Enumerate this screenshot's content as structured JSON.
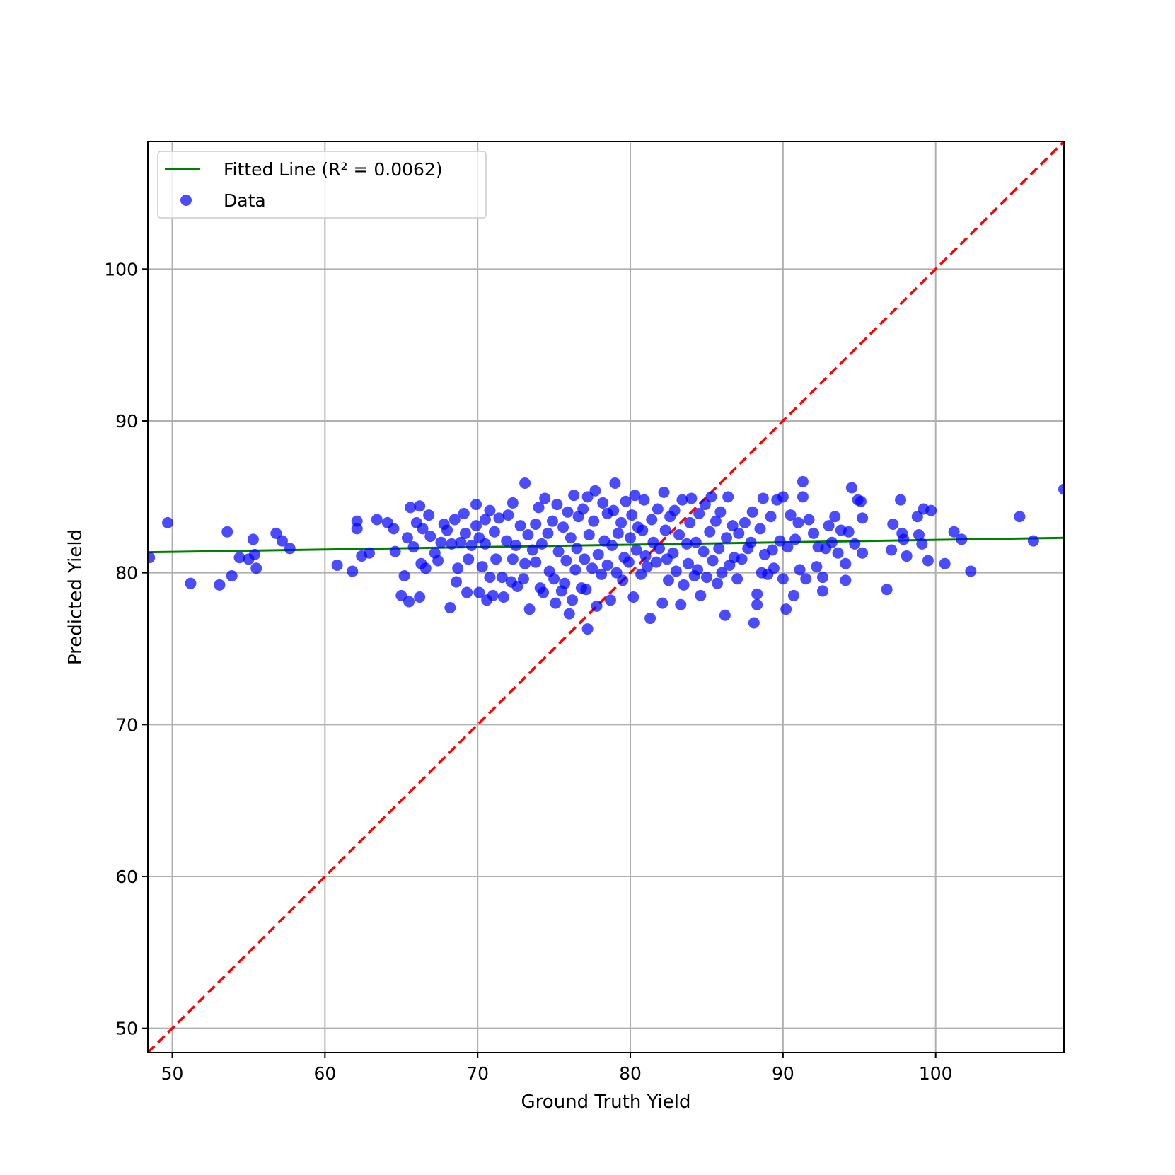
{
  "chart_data": {
    "type": "scatter",
    "title": "",
    "xlabel": "Ground Truth Yield",
    "ylabel": "Predicted Yield",
    "xlim": [
      48.4,
      108.4
    ],
    "ylim": [
      48.4,
      108.4
    ],
    "xticks": [
      50,
      60,
      70,
      80,
      90,
      100
    ],
    "yticks": [
      50,
      60,
      70,
      80,
      90,
      100
    ],
    "grid": true,
    "legend_position": "top-left",
    "legend": {
      "fitted_label": "Fitted Line (R² = 0.0062)",
      "data_label": "Data"
    },
    "colors": {
      "points": "#0000ff",
      "fitted": "#008000",
      "identity": "#ff0000",
      "grid": "#b0b0b0"
    },
    "fitted_line": {
      "x": [
        48.4,
        108.4
      ],
      "y": [
        81.35,
        82.3
      ]
    },
    "identity_line": {
      "x": [
        48.4,
        108.4
      ],
      "y": [
        48.4,
        108.4
      ]
    },
    "series": [
      {
        "name": "Data",
        "points": [
          [
            48.5,
            81.0
          ],
          [
            49.7,
            83.3
          ],
          [
            51.2,
            79.3
          ],
          [
            53.1,
            79.2
          ],
          [
            53.6,
            82.7
          ],
          [
            53.9,
            79.8
          ],
          [
            54.4,
            81.0
          ],
          [
            55.0,
            80.9
          ],
          [
            55.3,
            82.2
          ],
          [
            55.4,
            81.2
          ],
          [
            55.5,
            80.3
          ],
          [
            56.8,
            82.6
          ],
          [
            57.2,
            82.1
          ],
          [
            57.7,
            81.6
          ],
          [
            60.8,
            80.5
          ],
          [
            61.8,
            80.1
          ],
          [
            62.1,
            83.4
          ],
          [
            62.1,
            82.9
          ],
          [
            62.4,
            81.1
          ],
          [
            62.9,
            81.3
          ],
          [
            63.4,
            83.5
          ],
          [
            64.1,
            83.3
          ],
          [
            64.5,
            82.9
          ],
          [
            64.6,
            81.4
          ],
          [
            65.0,
            78.5
          ],
          [
            65.2,
            79.8
          ],
          [
            65.4,
            82.3
          ],
          [
            65.5,
            78.1
          ],
          [
            65.6,
            84.3
          ],
          [
            65.8,
            81.7
          ],
          [
            66.0,
            83.3
          ],
          [
            66.2,
            84.4
          ],
          [
            66.2,
            78.4
          ],
          [
            66.3,
            80.6
          ],
          [
            66.4,
            82.9
          ],
          [
            66.6,
            80.3
          ],
          [
            66.8,
            83.8
          ],
          [
            66.9,
            82.4
          ],
          [
            67.2,
            81.3
          ],
          [
            67.4,
            80.8
          ],
          [
            67.6,
            82.0
          ],
          [
            67.8,
            83.2
          ],
          [
            68.0,
            82.8
          ],
          [
            68.2,
            77.7
          ],
          [
            68.3,
            81.9
          ],
          [
            68.5,
            83.5
          ],
          [
            68.6,
            79.4
          ],
          [
            68.7,
            80.3
          ],
          [
            68.9,
            82.0
          ],
          [
            69.1,
            83.9
          ],
          [
            69.2,
            82.6
          ],
          [
            69.3,
            78.7
          ],
          [
            69.4,
            80.9
          ],
          [
            69.6,
            81.8
          ],
          [
            69.9,
            84.5
          ],
          [
            69.9,
            83.1
          ],
          [
            70.1,
            82.3
          ],
          [
            70.1,
            78.7
          ],
          [
            70.3,
            80.4
          ],
          [
            70.5,
            81.9
          ],
          [
            70.5,
            83.5
          ],
          [
            70.6,
            78.2
          ],
          [
            70.8,
            79.7
          ],
          [
            70.8,
            84.1
          ],
          [
            71.0,
            78.5
          ],
          [
            71.1,
            82.7
          ],
          [
            71.2,
            80.9
          ],
          [
            71.4,
            83.6
          ],
          [
            71.6,
            79.7
          ],
          [
            71.7,
            78.4
          ],
          [
            71.9,
            82.1
          ],
          [
            72.0,
            83.8
          ],
          [
            72.2,
            79.4
          ],
          [
            72.3,
            80.9
          ],
          [
            72.3,
            84.6
          ],
          [
            72.5,
            81.8
          ],
          [
            72.6,
            79.1
          ],
          [
            72.8,
            83.1
          ],
          [
            73.0,
            79.6
          ],
          [
            73.1,
            80.6
          ],
          [
            73.1,
            85.9
          ],
          [
            73.3,
            82.5
          ],
          [
            73.4,
            77.6
          ],
          [
            73.6,
            81.5
          ],
          [
            73.8,
            80.7
          ],
          [
            73.8,
            83.2
          ],
          [
            74.0,
            84.3
          ],
          [
            74.1,
            79.0
          ],
          [
            74.2,
            81.9
          ],
          [
            74.3,
            78.7
          ],
          [
            74.4,
            84.9
          ],
          [
            74.6,
            82.6
          ],
          [
            74.7,
            80.1
          ],
          [
            74.9,
            83.4
          ],
          [
            75.0,
            79.6
          ],
          [
            75.1,
            78.0
          ],
          [
            75.2,
            84.5
          ],
          [
            75.3,
            81.4
          ],
          [
            75.5,
            78.8
          ],
          [
            75.6,
            83.0
          ],
          [
            75.7,
            79.3
          ],
          [
            75.8,
            80.8
          ],
          [
            75.9,
            84.0
          ],
          [
            76.0,
            77.3
          ],
          [
            76.1,
            82.3
          ],
          [
            76.2,
            78.2
          ],
          [
            76.3,
            85.1
          ],
          [
            76.4,
            80.2
          ],
          [
            76.5,
            81.6
          ],
          [
            76.6,
            83.7
          ],
          [
            76.8,
            79.0
          ],
          [
            76.9,
            84.2
          ],
          [
            77.0,
            80.9
          ],
          [
            77.1,
            78.9
          ],
          [
            77.2,
            76.3
          ],
          [
            77.2,
            85.0
          ],
          [
            77.3,
            82.5
          ],
          [
            77.5,
            80.3
          ],
          [
            77.6,
            83.4
          ],
          [
            77.7,
            85.4
          ],
          [
            77.8,
            77.8
          ],
          [
            77.9,
            81.2
          ],
          [
            78.1,
            79.9
          ],
          [
            78.2,
            84.6
          ],
          [
            78.3,
            82.1
          ],
          [
            78.5,
            80.5
          ],
          [
            78.5,
            83.9
          ],
          [
            78.7,
            78.2
          ],
          [
            78.8,
            81.8
          ],
          [
            78.9,
            84.1
          ],
          [
            79.0,
            85.9
          ],
          [
            79.1,
            80.0
          ],
          [
            79.2,
            82.6
          ],
          [
            79.4,
            83.3
          ],
          [
            79.5,
            79.5
          ],
          [
            79.6,
            81.0
          ],
          [
            79.7,
            84.7
          ],
          [
            79.9,
            80.7
          ],
          [
            80.0,
            82.3
          ],
          [
            80.1,
            83.8
          ],
          [
            80.2,
            78.4
          ],
          [
            80.3,
            85.1
          ],
          [
            80.4,
            81.5
          ],
          [
            80.5,
            83.0
          ],
          [
            80.7,
            79.9
          ],
          [
            80.8,
            82.8
          ],
          [
            80.9,
            84.8
          ],
          [
            81.0,
            81.1
          ],
          [
            81.1,
            80.4
          ],
          [
            81.3,
            77.0
          ],
          [
            81.4,
            83.5
          ],
          [
            81.5,
            82.0
          ],
          [
            81.7,
            80.7
          ],
          [
            81.8,
            84.2
          ],
          [
            81.9,
            81.6
          ],
          [
            82.1,
            78.0
          ],
          [
            82.2,
            85.3
          ],
          [
            82.3,
            82.8
          ],
          [
            82.4,
            80.9
          ],
          [
            82.5,
            79.5
          ],
          [
            82.6,
            83.7
          ],
          [
            82.8,
            81.3
          ],
          [
            82.9,
            84.1
          ],
          [
            83.0,
            80.1
          ],
          [
            83.2,
            82.5
          ],
          [
            83.3,
            77.9
          ],
          [
            83.4,
            84.8
          ],
          [
            83.5,
            79.2
          ],
          [
            83.7,
            81.9
          ],
          [
            83.8,
            80.6
          ],
          [
            83.9,
            83.3
          ],
          [
            84.0,
            84.9
          ],
          [
            84.2,
            79.8
          ],
          [
            84.3,
            82.0
          ],
          [
            84.4,
            80.2
          ],
          [
            84.5,
            83.9
          ],
          [
            84.6,
            78.5
          ],
          [
            84.8,
            81.4
          ],
          [
            84.9,
            84.5
          ],
          [
            85.0,
            79.7
          ],
          [
            85.2,
            82.7
          ],
          [
            85.3,
            85.0
          ],
          [
            85.4,
            80.8
          ],
          [
            85.6,
            83.4
          ],
          [
            85.7,
            79.3
          ],
          [
            85.8,
            81.6
          ],
          [
            85.9,
            84.0
          ],
          [
            86.0,
            80.0
          ],
          [
            86.2,
            77.2
          ],
          [
            86.3,
            82.3
          ],
          [
            86.4,
            85.0
          ],
          [
            86.5,
            80.5
          ],
          [
            86.7,
            83.1
          ],
          [
            86.8,
            81.0
          ],
          [
            87.0,
            79.6
          ],
          [
            87.1,
            82.6
          ],
          [
            87.3,
            80.9
          ],
          [
            87.5,
            83.3
          ],
          [
            87.7,
            81.6
          ],
          [
            87.9,
            82.0
          ],
          [
            88.0,
            84.0
          ],
          [
            88.1,
            76.7
          ],
          [
            88.3,
            77.9
          ],
          [
            88.3,
            78.6
          ],
          [
            88.5,
            82.9
          ],
          [
            88.6,
            80.0
          ],
          [
            88.7,
            84.9
          ],
          [
            88.8,
            81.2
          ],
          [
            89.0,
            79.9
          ],
          [
            89.2,
            83.7
          ],
          [
            89.3,
            81.5
          ],
          [
            89.4,
            80.3
          ],
          [
            89.6,
            84.8
          ],
          [
            89.8,
            82.1
          ],
          [
            90.0,
            79.6
          ],
          [
            90.0,
            85.0
          ],
          [
            90.2,
            77.6
          ],
          [
            90.3,
            81.7
          ],
          [
            90.5,
            83.8
          ],
          [
            90.7,
            78.5
          ],
          [
            90.8,
            82.2
          ],
          [
            91.0,
            83.3
          ],
          [
            91.1,
            80.2
          ],
          [
            91.3,
            86.0
          ],
          [
            91.3,
            85.0
          ],
          [
            91.5,
            79.6
          ],
          [
            91.7,
            83.5
          ],
          [
            92.0,
            82.6
          ],
          [
            92.2,
            80.4
          ],
          [
            92.3,
            81.7
          ],
          [
            92.6,
            79.7
          ],
          [
            92.6,
            78.8
          ],
          [
            92.8,
            81.6
          ],
          [
            93.0,
            83.1
          ],
          [
            93.2,
            82.0
          ],
          [
            93.4,
            83.7
          ],
          [
            93.6,
            81.3
          ],
          [
            93.8,
            82.8
          ],
          [
            94.1,
            80.6
          ],
          [
            94.1,
            79.5
          ],
          [
            94.3,
            82.7
          ],
          [
            94.5,
            85.6
          ],
          [
            94.7,
            81.9
          ],
          [
            94.9,
            84.8
          ],
          [
            95.1,
            84.7
          ],
          [
            95.2,
            83.6
          ],
          [
            95.2,
            81.3
          ],
          [
            96.8,
            78.9
          ],
          [
            97.1,
            81.5
          ],
          [
            97.2,
            83.2
          ],
          [
            97.7,
            84.8
          ],
          [
            97.8,
            82.6
          ],
          [
            97.9,
            82.2
          ],
          [
            98.1,
            81.1
          ],
          [
            98.8,
            83.7
          ],
          [
            98.9,
            82.5
          ],
          [
            99.1,
            81.9
          ],
          [
            99.2,
            84.2
          ],
          [
            99.5,
            80.8
          ],
          [
            99.7,
            84.1
          ],
          [
            100.6,
            80.6
          ],
          [
            101.2,
            82.7
          ],
          [
            101.7,
            82.2
          ],
          [
            102.3,
            80.1
          ],
          [
            105.5,
            83.7
          ],
          [
            106.4,
            82.1
          ],
          [
            108.4,
            85.5
          ]
        ]
      }
    ]
  }
}
